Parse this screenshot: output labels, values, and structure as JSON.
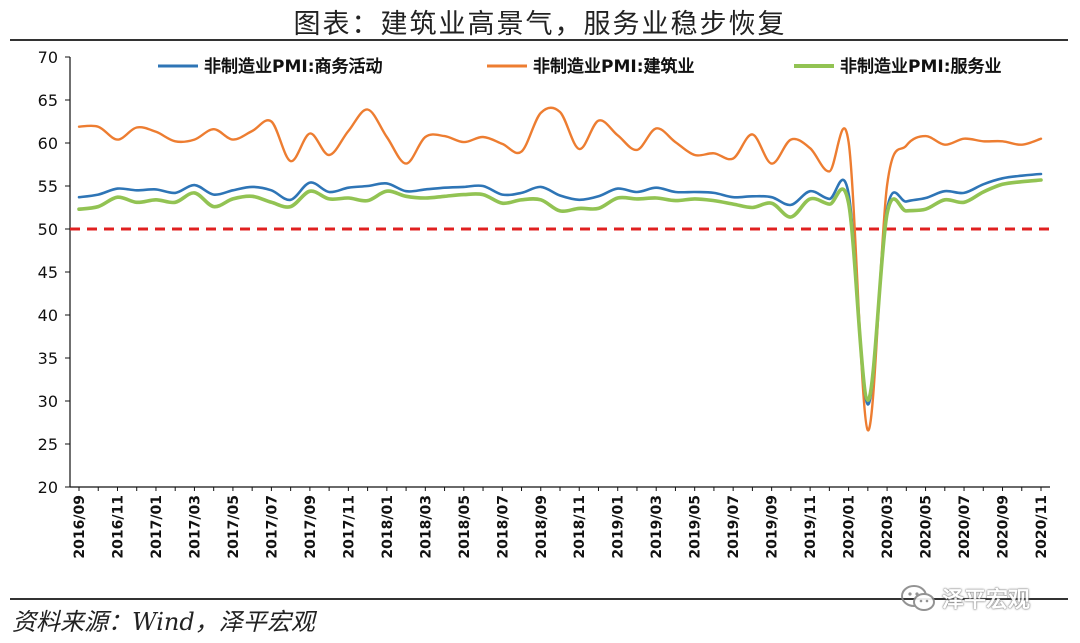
{
  "title": "图表：建筑业高景气，服务业稳步恢复",
  "source": "资料来源：Wind，泽平宏观",
  "watermark": "泽平宏观",
  "chart_data": {
    "type": "line",
    "ylim": [
      20,
      70
    ],
    "yticks": [
      20,
      25,
      30,
      35,
      40,
      45,
      50,
      55,
      60,
      65,
      70
    ],
    "x": [
      "2016/09",
      "2016/10",
      "2016/11",
      "2016/12",
      "2017/01",
      "2017/02",
      "2017/03",
      "2017/04",
      "2017/05",
      "2017/06",
      "2017/07",
      "2017/08",
      "2017/09",
      "2017/10",
      "2017/11",
      "2017/12",
      "2018/01",
      "2018/02",
      "2018/03",
      "2018/04",
      "2018/05",
      "2018/06",
      "2018/07",
      "2018/08",
      "2018/09",
      "2018/10",
      "2018/11",
      "2018/12",
      "2019/01",
      "2019/02",
      "2019/03",
      "2019/04",
      "2019/05",
      "2019/06",
      "2019/07",
      "2019/08",
      "2019/09",
      "2019/10",
      "2019/11",
      "2019/12",
      "2020/01",
      "2020/02",
      "2020/03",
      "2020/04",
      "2020/05",
      "2020/06",
      "2020/07",
      "2020/08",
      "2020/09",
      "2020/10",
      "2020/11"
    ],
    "x_tick_labels": [
      "2016/09",
      "2016/11",
      "2017/01",
      "2017/03",
      "2017/05",
      "2017/07",
      "2017/09",
      "2017/11",
      "2018/01",
      "2018/03",
      "2018/05",
      "2018/07",
      "2018/09",
      "2018/11",
      "2019/01",
      "2019/03",
      "2019/05",
      "2019/07",
      "2019/09",
      "2019/11",
      "2020/01",
      "2020/03",
      "2020/05",
      "2020/07",
      "2020/09",
      "2020/11"
    ],
    "reference_line": {
      "value": 50,
      "color": "#e02020",
      "style": "dashed"
    },
    "series": [
      {
        "name": "非制造业PMI:商务活动",
        "color": "#2e75b6",
        "values": [
          53.7,
          54.0,
          54.7,
          54.5,
          54.6,
          54.2,
          55.1,
          54.0,
          54.5,
          54.9,
          54.5,
          53.4,
          55.4,
          54.3,
          54.8,
          55.0,
          55.3,
          54.4,
          54.6,
          54.8,
          54.9,
          55.0,
          54.0,
          54.2,
          54.9,
          53.9,
          53.4,
          53.8,
          54.7,
          54.3,
          54.8,
          54.3,
          54.3,
          54.2,
          53.7,
          53.8,
          53.7,
          52.8,
          54.4,
          53.5,
          54.1,
          29.6,
          52.3,
          53.2,
          53.6,
          54.4,
          54.2,
          55.2,
          55.9,
          56.2,
          56.4
        ]
      },
      {
        "name": "非制造业PMI:建筑业",
        "color": "#ed7d31",
        "values": [
          61.9,
          61.9,
          60.4,
          61.8,
          61.3,
          60.2,
          60.4,
          61.6,
          60.4,
          61.4,
          62.5,
          57.9,
          61.1,
          58.6,
          61.4,
          63.9,
          60.7,
          57.6,
          60.7,
          60.8,
          60.1,
          60.7,
          59.9,
          59.0,
          63.5,
          63.6,
          59.3,
          62.6,
          60.9,
          59.2,
          61.7,
          60.1,
          58.6,
          58.8,
          58.2,
          61.0,
          57.6,
          60.4,
          59.4,
          56.7,
          60.1,
          26.6,
          55.1,
          59.7,
          60.8,
          59.8,
          60.5,
          60.2,
          60.2,
          59.8,
          60.5
        ]
      },
      {
        "name": "非制造业PMI:服务业",
        "color": "#92c353",
        "values": [
          52.3,
          52.6,
          53.7,
          53.1,
          53.4,
          53.1,
          54.2,
          52.6,
          53.5,
          53.8,
          53.1,
          52.6,
          54.4,
          53.5,
          53.6,
          53.3,
          54.4,
          53.8,
          53.6,
          53.8,
          54.0,
          54.0,
          53.0,
          53.4,
          53.4,
          52.1,
          52.4,
          52.4,
          53.6,
          53.5,
          53.6,
          53.3,
          53.5,
          53.3,
          52.9,
          52.5,
          53.0,
          51.4,
          53.5,
          52.9,
          53.0,
          30.1,
          51.8,
          52.1,
          52.3,
          53.4,
          53.1,
          54.3,
          55.2,
          55.5,
          55.7
        ]
      }
    ]
  }
}
